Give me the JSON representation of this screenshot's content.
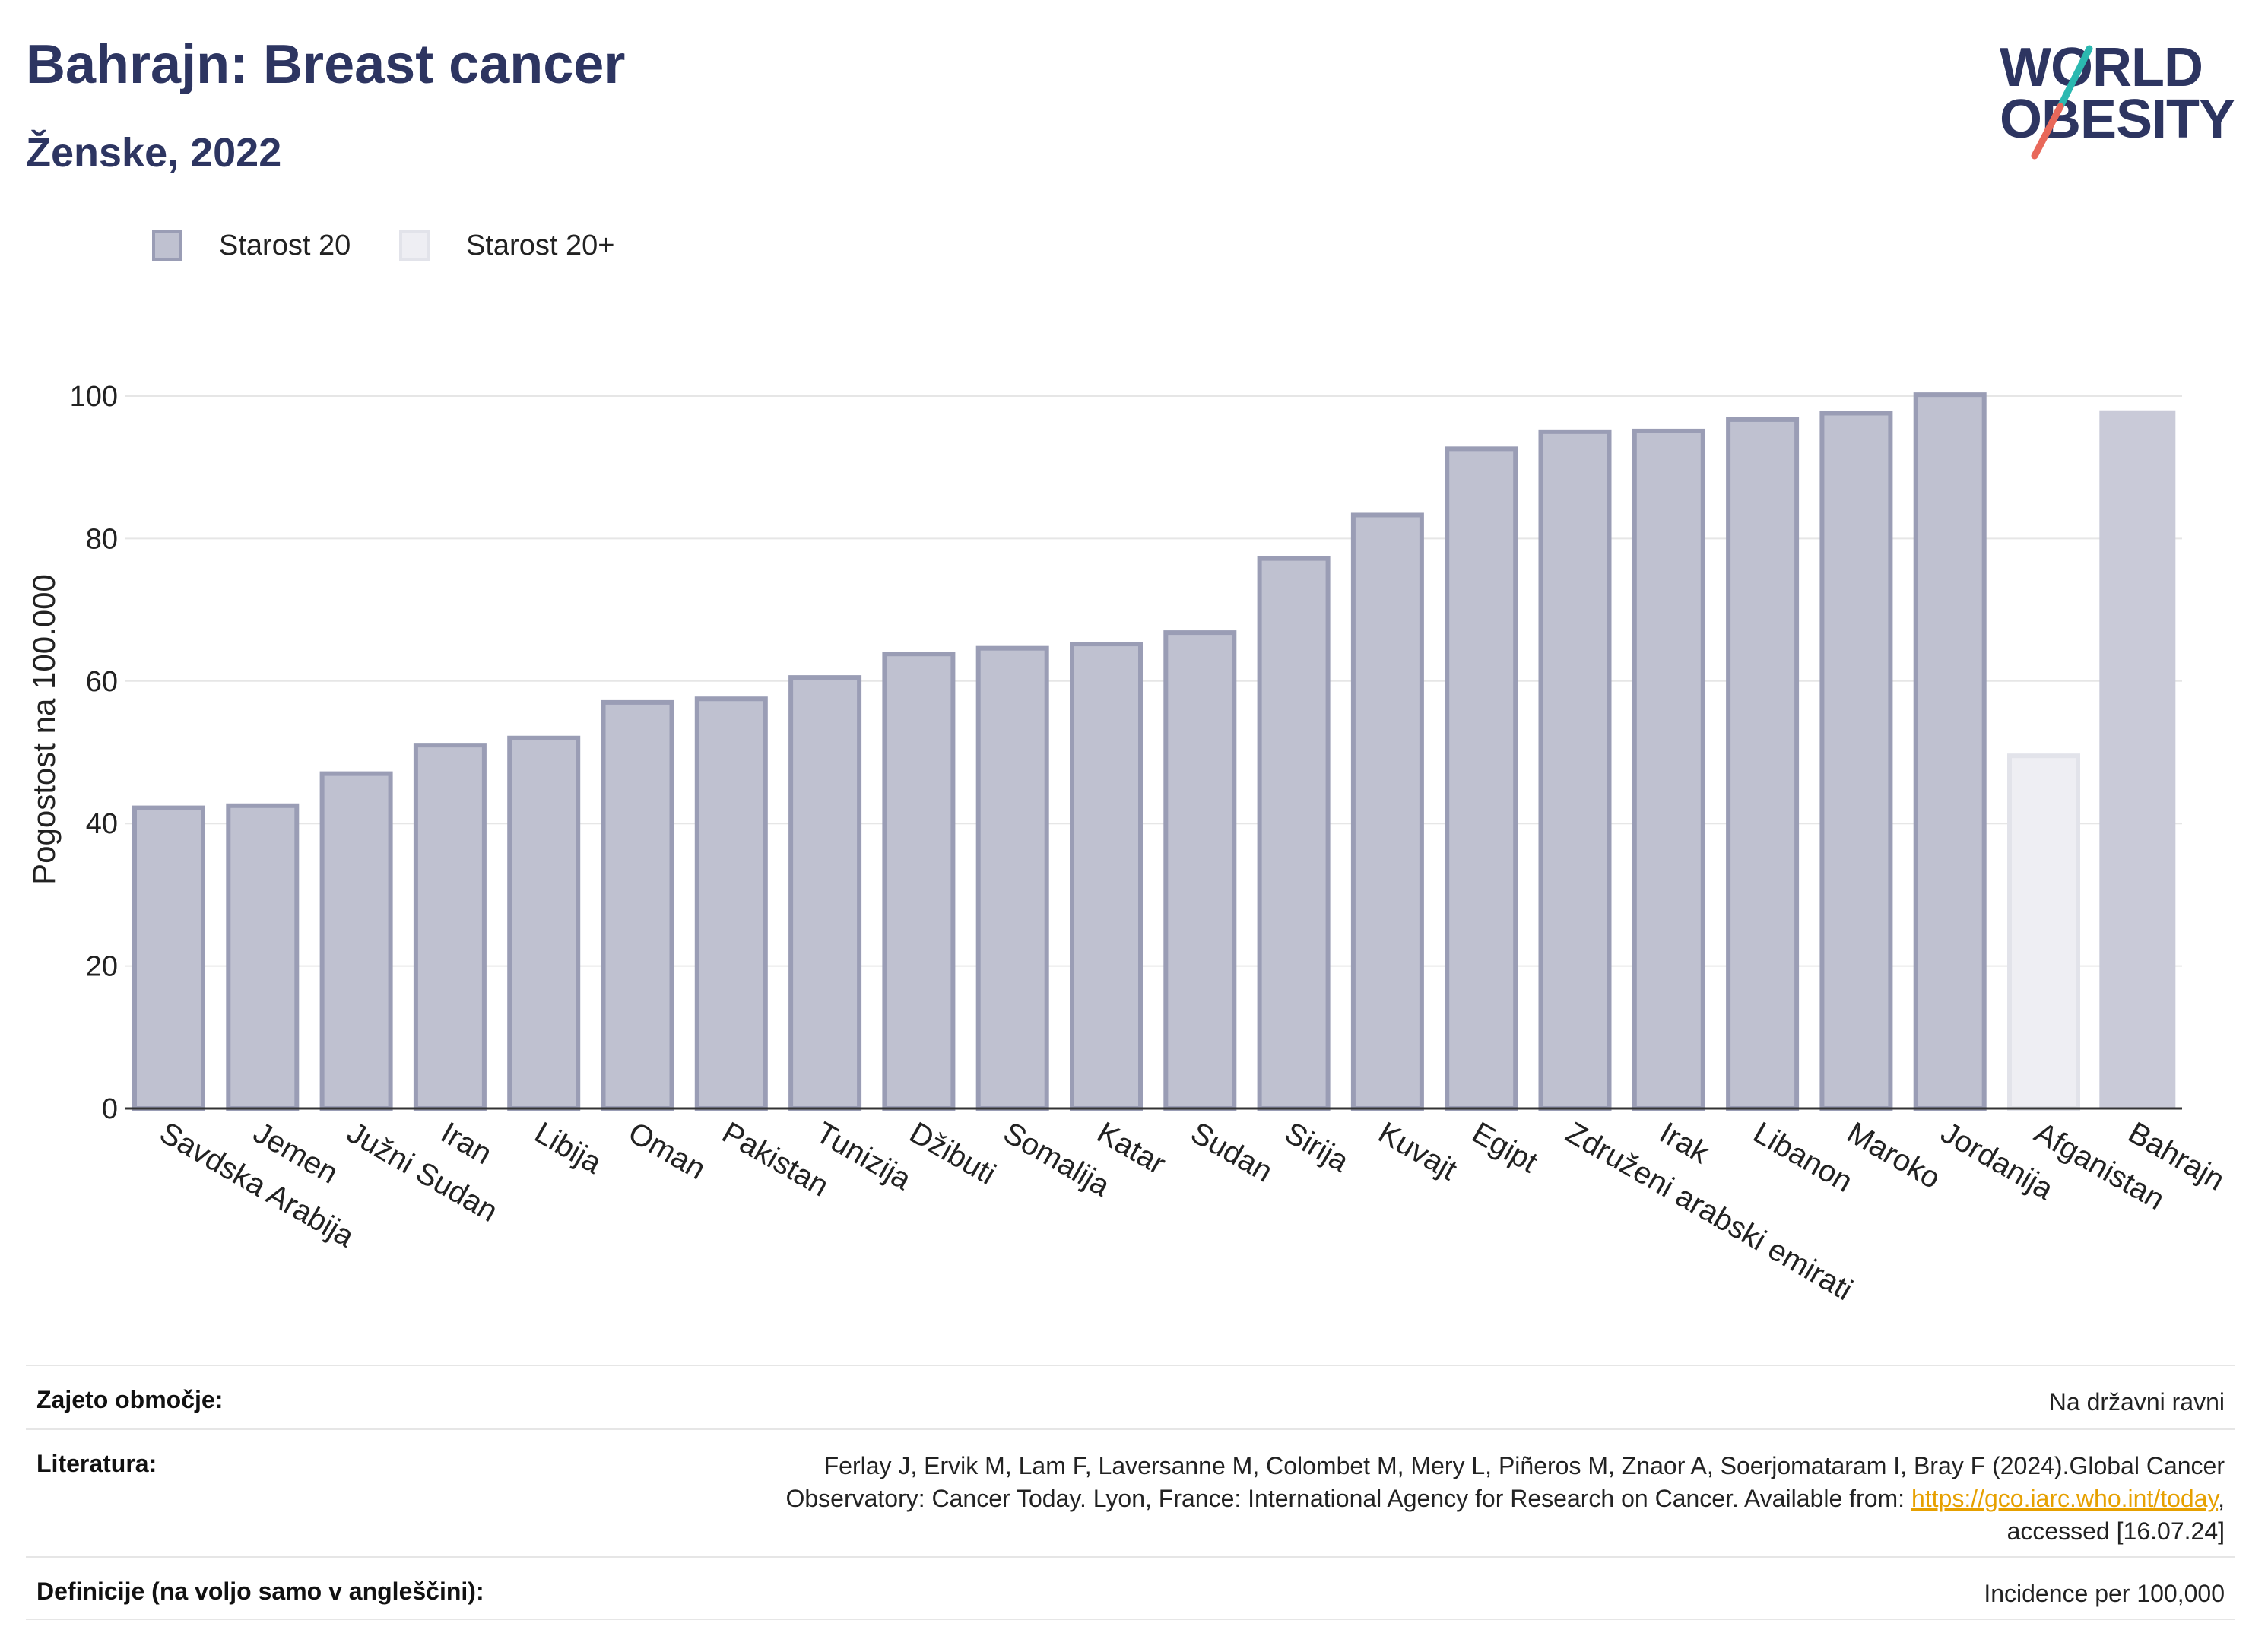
{
  "header": {
    "title": "Bahrajn: Breast cancer",
    "subtitle": "Ženske, 2022"
  },
  "logo": {
    "line1": "WORLD",
    "line2": "OBESITY",
    "colors": {
      "navy": "#2d3561",
      "teal": "#2bb8b0",
      "coral": "#e8685a"
    }
  },
  "legend": {
    "items": [
      {
        "label": "Starost 20",
        "fill": "#bfc1d0",
        "stroke": "#9a9db5"
      },
      {
        "label": "Starost 20+",
        "fill": "#eeeef3",
        "stroke": "#e2e3ea"
      }
    ]
  },
  "chart_data": {
    "type": "bar",
    "ylabel": "Pogostost na 100.000",
    "ylim": [
      0,
      110
    ],
    "yticks": [
      0,
      20,
      40,
      60,
      80,
      100
    ],
    "grid": true,
    "legend_position": "top-left",
    "categories": [
      "Savdska Arabija",
      "Jemen",
      "Južni Sudan",
      "Iran",
      "Libija",
      "Oman",
      "Pakistan",
      "Tunizija",
      "Džibuti",
      "Somalija",
      "Katar",
      "Sudan",
      "Sirija",
      "Kuvajt",
      "Egipt",
      "Združeni arabski emirati",
      "Irak",
      "Libanon",
      "Maroko",
      "Jordanija",
      "Afganistan",
      "Bahrajn"
    ],
    "values": [
      42.2,
      42.5,
      47,
      51,
      52,
      57,
      57.5,
      60.5,
      63.8,
      64.6,
      65.2,
      66.8,
      77.2,
      83.3,
      92.6,
      95,
      95.1,
      96.7,
      97.6,
      100.2,
      49.5,
      98
    ],
    "styles": [
      "a",
      "a",
      "a",
      "a",
      "a",
      "a",
      "a",
      "a",
      "a",
      "a",
      "a",
      "a",
      "a",
      "a",
      "a",
      "a",
      "a",
      "a",
      "a",
      "a",
      "b",
      "c"
    ],
    "style_colors": {
      "a": {
        "fill": "#bfc1d0",
        "stroke": "#9a9db5"
      },
      "b": {
        "fill": "#eeeef3",
        "stroke": "#e2e3ea"
      },
      "c": {
        "fill": "#c9cad8",
        "stroke": "none"
      }
    }
  },
  "footer": {
    "rows": [
      {
        "key": "Zajeto območje:",
        "value": "Na državni ravni"
      },
      {
        "key": "Literatura:",
        "value_line1": "Ferlay J, Ervik M, Lam F, Laversanne M, Colombet M, Mery L, Piñeros M, Znaor A, Soerjomataram I, Bray F (2024).Global Cancer",
        "value_line2_pre": "Observatory: Cancer Today. Lyon, France: International Agency for Research on Cancer. Available from: ",
        "link": "https://gco.iarc.who.int/today",
        "value_line2_post": ",",
        "value_line3": "accessed [16.07.24]"
      },
      {
        "key": "Definicije (na voljo samo v angleščini):",
        "value": "Incidence per 100,000"
      }
    ]
  }
}
